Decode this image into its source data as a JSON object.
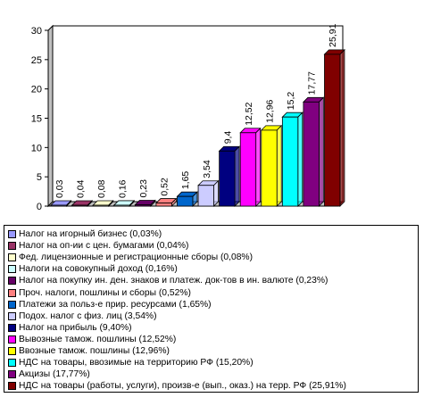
{
  "chart_data": {
    "type": "bar",
    "categories": [
      "Налог на игорный бизнес (0,03%)",
      "Налог на оп-ии с цен. бумагами (0,04%)",
      "Фед. лицензионные и регистрационные сборы (0,08%)",
      "Налоги на совокупный доход (0,16%)",
      "Налог на покупку ин. ден. знаков и платеж. док-тов в ин. валюте (0,23%)",
      "Проч. налоги, пошлины и сборы (0,52%)",
      "Платежи за польз-е прир. ресурсами (1,65%)",
      "Подох. налог с физ. лиц (3,54%)",
      "Налог на прибыль (9,40%)",
      "Вывозные тамож. пошлины (12,52%)",
      "Ввозные тамож. пошлины (12,96%)",
      "НДС на товары, ввозимые на территорию РФ (15,20%)",
      "Акцизы (17,77%)",
      "НДС на товары (работы, услуги), произв-е (вып., оказ.) на терр. РФ (25,91%)"
    ],
    "values": [
      0.03,
      0.04,
      0.08,
      0.16,
      0.23,
      0.52,
      1.65,
      3.54,
      9.4,
      12.52,
      12.96,
      15.2,
      17.77,
      25.91
    ],
    "data_labels": [
      "0,03",
      "0,04",
      "0,08",
      "0,16",
      "0,23",
      "0,52",
      "1,65",
      "3,54",
      "9,4",
      "12,52",
      "12,96",
      "15,2",
      "17,77",
      "25,91"
    ],
    "colors": [
      "#9999ff",
      "#993366",
      "#ffffcc",
      "#ccffff",
      "#660066",
      "#ff8080",
      "#0066cc",
      "#ccccff",
      "#000080",
      "#ff00ff",
      "#ffff00",
      "#00ffff",
      "#800080",
      "#800000"
    ],
    "yticks": [
      "0",
      "5",
      "10",
      "15",
      "20",
      "25",
      "30"
    ],
    "ylim": [
      0,
      30
    ],
    "grid": false,
    "legend_position": "bottom",
    "title": "",
    "xlabel": "",
    "ylabel": ""
  }
}
